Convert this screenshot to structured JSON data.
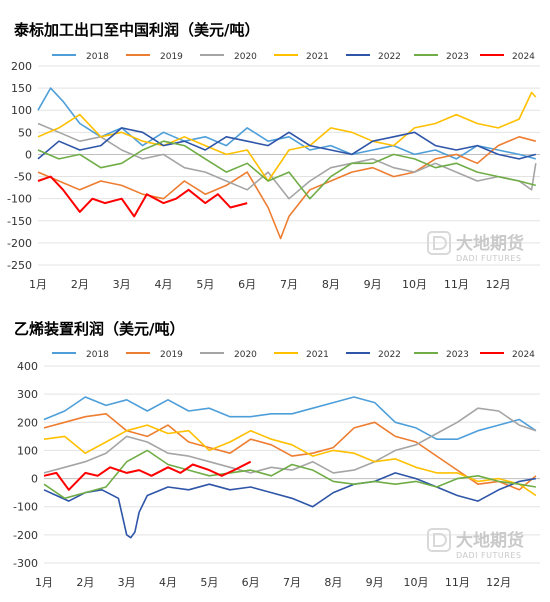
{
  "colors": {
    "2018": "#4e9fd9",
    "2019": "#ed7d31",
    "2020": "#a5a5a5",
    "2021": "#ffc000",
    "2022": "#2e55a8",
    "2023": "#70ad47",
    "2024": "#ff0000"
  },
  "watermark": {
    "brand": "大地期货",
    "sub": "DADI FUTURES",
    "logo_icon": "dadi-logo-icon"
  },
  "chart_data": [
    {
      "type": "line",
      "title": "泰标加工出口至中国利润（美元/吨）",
      "xlabel": "",
      "ylabel": "",
      "ylim": [
        -250,
        200
      ],
      "yticks": [
        "200",
        "150",
        "100",
        "50",
        "0",
        "-50",
        "-100",
        "-150",
        "-200",
        "-250"
      ],
      "ytick_values": [
        200,
        150,
        100,
        50,
        0,
        -50,
        -100,
        -150,
        -200,
        -250
      ],
      "xticks": [
        "1月",
        "2月",
        "3月",
        "4月",
        "5月",
        "6月",
        "7月",
        "8月",
        "9月",
        "10月",
        "11月",
        "12月"
      ],
      "x_unit": "month",
      "grid": "horizontal",
      "legend_position": "top",
      "series": [
        {
          "name": "2018",
          "x": [
            1,
            1.3,
            1.6,
            2,
            2.5,
            3,
            3.5,
            4,
            4.5,
            5,
            5.5,
            6,
            6.5,
            7,
            7.5,
            8,
            8.5,
            9,
            9.5,
            10,
            10.5,
            11,
            11.5,
            12,
            12.5,
            12.9
          ],
          "values": [
            100,
            150,
            120,
            70,
            40,
            60,
            20,
            50,
            30,
            40,
            20,
            60,
            30,
            40,
            10,
            20,
            0,
            10,
            20,
            0,
            10,
            -10,
            20,
            10,
            0,
            -10
          ]
        },
        {
          "name": "2019",
          "x": [
            1,
            1.5,
            2,
            2.5,
            3,
            3.5,
            4,
            4.5,
            5,
            5.5,
            6,
            6.5,
            6.8,
            7,
            7.5,
            8,
            8.5,
            9,
            9.5,
            10,
            10.5,
            11,
            11.5,
            12,
            12.5,
            12.9
          ],
          "values": [
            -40,
            -60,
            -80,
            -60,
            -70,
            -90,
            -100,
            -60,
            -90,
            -70,
            -40,
            -120,
            -190,
            -140,
            -80,
            -60,
            -40,
            -30,
            -50,
            -40,
            -10,
            0,
            -20,
            20,
            40,
            30
          ]
        },
        {
          "name": "2020",
          "x": [
            1,
            1.5,
            2,
            2.5,
            3,
            3.5,
            4,
            4.5,
            5,
            5.5,
            6,
            6.5,
            7,
            7.5,
            8,
            8.5,
            9,
            9.5,
            10,
            10.5,
            11,
            11.5,
            12,
            12.5,
            12.8,
            12.9
          ],
          "values": [
            70,
            50,
            30,
            40,
            10,
            -10,
            0,
            -30,
            -40,
            -60,
            -80,
            -40,
            -100,
            -60,
            -30,
            -20,
            -10,
            -30,
            -40,
            -20,
            -40,
            -60,
            -50,
            -60,
            -80,
            -20
          ]
        },
        {
          "name": "2021",
          "x": [
            1,
            1.5,
            2,
            2.5,
            3,
            3.5,
            4,
            4.5,
            5,
            5.5,
            6,
            6.5,
            7,
            7.5,
            8,
            8.5,
            9,
            9.5,
            10,
            10.5,
            11,
            11.5,
            12,
            12.5,
            12.8,
            12.9
          ],
          "values": [
            40,
            60,
            90,
            40,
            50,
            30,
            20,
            40,
            20,
            0,
            10,
            -60,
            10,
            20,
            60,
            50,
            30,
            20,
            60,
            70,
            90,
            70,
            60,
            80,
            140,
            130
          ]
        },
        {
          "name": "2022",
          "x": [
            1,
            1.5,
            2,
            2.5,
            3,
            3.5,
            4,
            4.5,
            5,
            5.5,
            6,
            6.5,
            7,
            7.5,
            8,
            8.5,
            9,
            9.5,
            10,
            10.5,
            11,
            11.5,
            12,
            12.5,
            12.9
          ],
          "values": [
            -10,
            30,
            10,
            20,
            60,
            50,
            20,
            30,
            10,
            40,
            30,
            20,
            50,
            20,
            10,
            0,
            30,
            40,
            50,
            20,
            10,
            20,
            0,
            -10,
            0
          ]
        },
        {
          "name": "2023",
          "x": [
            1,
            1.5,
            2,
            2.5,
            3,
            3.5,
            4,
            4.5,
            5,
            5.5,
            6,
            6.5,
            7,
            7.5,
            8,
            8.5,
            9,
            9.5,
            10,
            10.5,
            11,
            11.5,
            12,
            12.5,
            12.9
          ],
          "values": [
            10,
            -10,
            0,
            -30,
            -20,
            10,
            30,
            20,
            -10,
            -40,
            -20,
            -60,
            -40,
            -100,
            -50,
            -20,
            -20,
            0,
            -10,
            -30,
            -20,
            -40,
            -50,
            -60,
            -70
          ]
        },
        {
          "name": "2024",
          "x": [
            1,
            1.3,
            1.6,
            2,
            2.3,
            2.6,
            3,
            3.3,
            3.6,
            4,
            4.3,
            4.6,
            5,
            5.3,
            5.6,
            6
          ],
          "values": [
            -60,
            -50,
            -80,
            -130,
            -100,
            -110,
            -100,
            -140,
            -90,
            -110,
            -100,
            -80,
            -110,
            -90,
            -120,
            -110
          ]
        }
      ]
    },
    {
      "type": "line",
      "title": "乙烯装置利润（美元/吨）",
      "xlabel": "",
      "ylabel": "",
      "ylim": [
        -300,
        400
      ],
      "yticks": [
        "400",
        "300",
        "200",
        "100",
        "0",
        "-100",
        "-200",
        "-300"
      ],
      "ytick_values": [
        400,
        300,
        200,
        100,
        0,
        -100,
        -200,
        -300
      ],
      "xticks": [
        "1月",
        "2月",
        "3月",
        "4月",
        "5月",
        "6月",
        "7月",
        "8月",
        "9月",
        "10月",
        "11月",
        "12月"
      ],
      "x_unit": "month",
      "grid": "horizontal",
      "legend_position": "top",
      "series": [
        {
          "name": "2018",
          "x": [
            1,
            1.5,
            2,
            2.5,
            3,
            3.5,
            4,
            4.5,
            5,
            5.5,
            6,
            6.5,
            7,
            7.5,
            8,
            8.5,
            9,
            9.5,
            10,
            10.5,
            11,
            11.5,
            12,
            12.5,
            12.9
          ],
          "values": [
            210,
            240,
            290,
            260,
            280,
            240,
            280,
            240,
            250,
            220,
            220,
            230,
            230,
            250,
            270,
            290,
            270,
            200,
            180,
            140,
            140,
            170,
            190,
            210,
            170
          ]
        },
        {
          "name": "2019",
          "x": [
            1,
            1.5,
            2,
            2.5,
            3,
            3.5,
            4,
            4.5,
            5,
            5.5,
            6,
            6.5,
            7,
            7.5,
            8,
            8.5,
            9,
            9.5,
            10,
            10.5,
            11,
            11.5,
            12,
            12.5,
            12.9
          ],
          "values": [
            180,
            200,
            220,
            230,
            170,
            150,
            190,
            130,
            110,
            90,
            140,
            120,
            80,
            90,
            110,
            180,
            200,
            150,
            130,
            80,
            30,
            -20,
            -10,
            -40,
            10
          ]
        },
        {
          "name": "2020",
          "x": [
            1,
            1.5,
            2,
            2.5,
            3,
            3.5,
            4,
            4.5,
            5,
            5.5,
            6,
            6.5,
            7,
            7.5,
            8,
            8.5,
            9,
            9.5,
            10,
            10.5,
            11,
            11.5,
            12,
            12.5,
            12.9
          ],
          "values": [
            20,
            40,
            60,
            90,
            150,
            130,
            90,
            80,
            60,
            40,
            20,
            40,
            30,
            60,
            20,
            30,
            60,
            100,
            120,
            160,
            200,
            250,
            240,
            190,
            170
          ]
        },
        {
          "name": "2021",
          "x": [
            1,
            1.5,
            2,
            2.5,
            3,
            3.5,
            4,
            4.5,
            5,
            5.5,
            6,
            6.5,
            7,
            7.5,
            8,
            8.5,
            9,
            9.5,
            10,
            10.5,
            11,
            11.5,
            12,
            12.5,
            12.9
          ],
          "values": [
            140,
            150,
            90,
            130,
            170,
            190,
            160,
            170,
            100,
            130,
            170,
            140,
            120,
            80,
            100,
            90,
            60,
            70,
            40,
            20,
            20,
            -10,
            0,
            -20,
            -60
          ]
        },
        {
          "name": "2022",
          "x": [
            1,
            1.3,
            1.6,
            2,
            2.4,
            2.8,
            3,
            3.1,
            3.2,
            3.3,
            3.5,
            4,
            4.5,
            5,
            5.5,
            6,
            6.5,
            7,
            7.5,
            8,
            8.5,
            9,
            9.5,
            10,
            10.5,
            11,
            11.5,
            12,
            12.5,
            12.9
          ],
          "values": [
            -40,
            -60,
            -80,
            -50,
            -40,
            -70,
            -200,
            -210,
            -190,
            -120,
            -60,
            -30,
            -40,
            -20,
            -40,
            -30,
            -50,
            -70,
            -100,
            -50,
            -20,
            -10,
            20,
            0,
            -30,
            -60,
            -80,
            -40,
            -10,
            0
          ]
        },
        {
          "name": "2023",
          "x": [
            1,
            1.5,
            2,
            2.5,
            3,
            3.5,
            4,
            4.5,
            5,
            5.5,
            6,
            6.5,
            7,
            7.5,
            8,
            8.5,
            9,
            9.5,
            10,
            10.5,
            11,
            11.5,
            12,
            12.5,
            12.9
          ],
          "values": [
            -20,
            -70,
            -50,
            -30,
            60,
            100,
            50,
            30,
            10,
            20,
            30,
            10,
            50,
            30,
            -10,
            -20,
            -10,
            -20,
            -10,
            -30,
            0,
            10,
            -10,
            -20,
            -30
          ]
        },
        {
          "name": "2024",
          "x": [
            1,
            1.3,
            1.6,
            2,
            2.3,
            2.6,
            3,
            3.3,
            3.6,
            4,
            4.3,
            4.6,
            5,
            5.3,
            5.6,
            6
          ],
          "values": [
            10,
            20,
            -40,
            20,
            10,
            40,
            20,
            30,
            10,
            40,
            20,
            50,
            30,
            10,
            30,
            60
          ]
        }
      ]
    }
  ]
}
